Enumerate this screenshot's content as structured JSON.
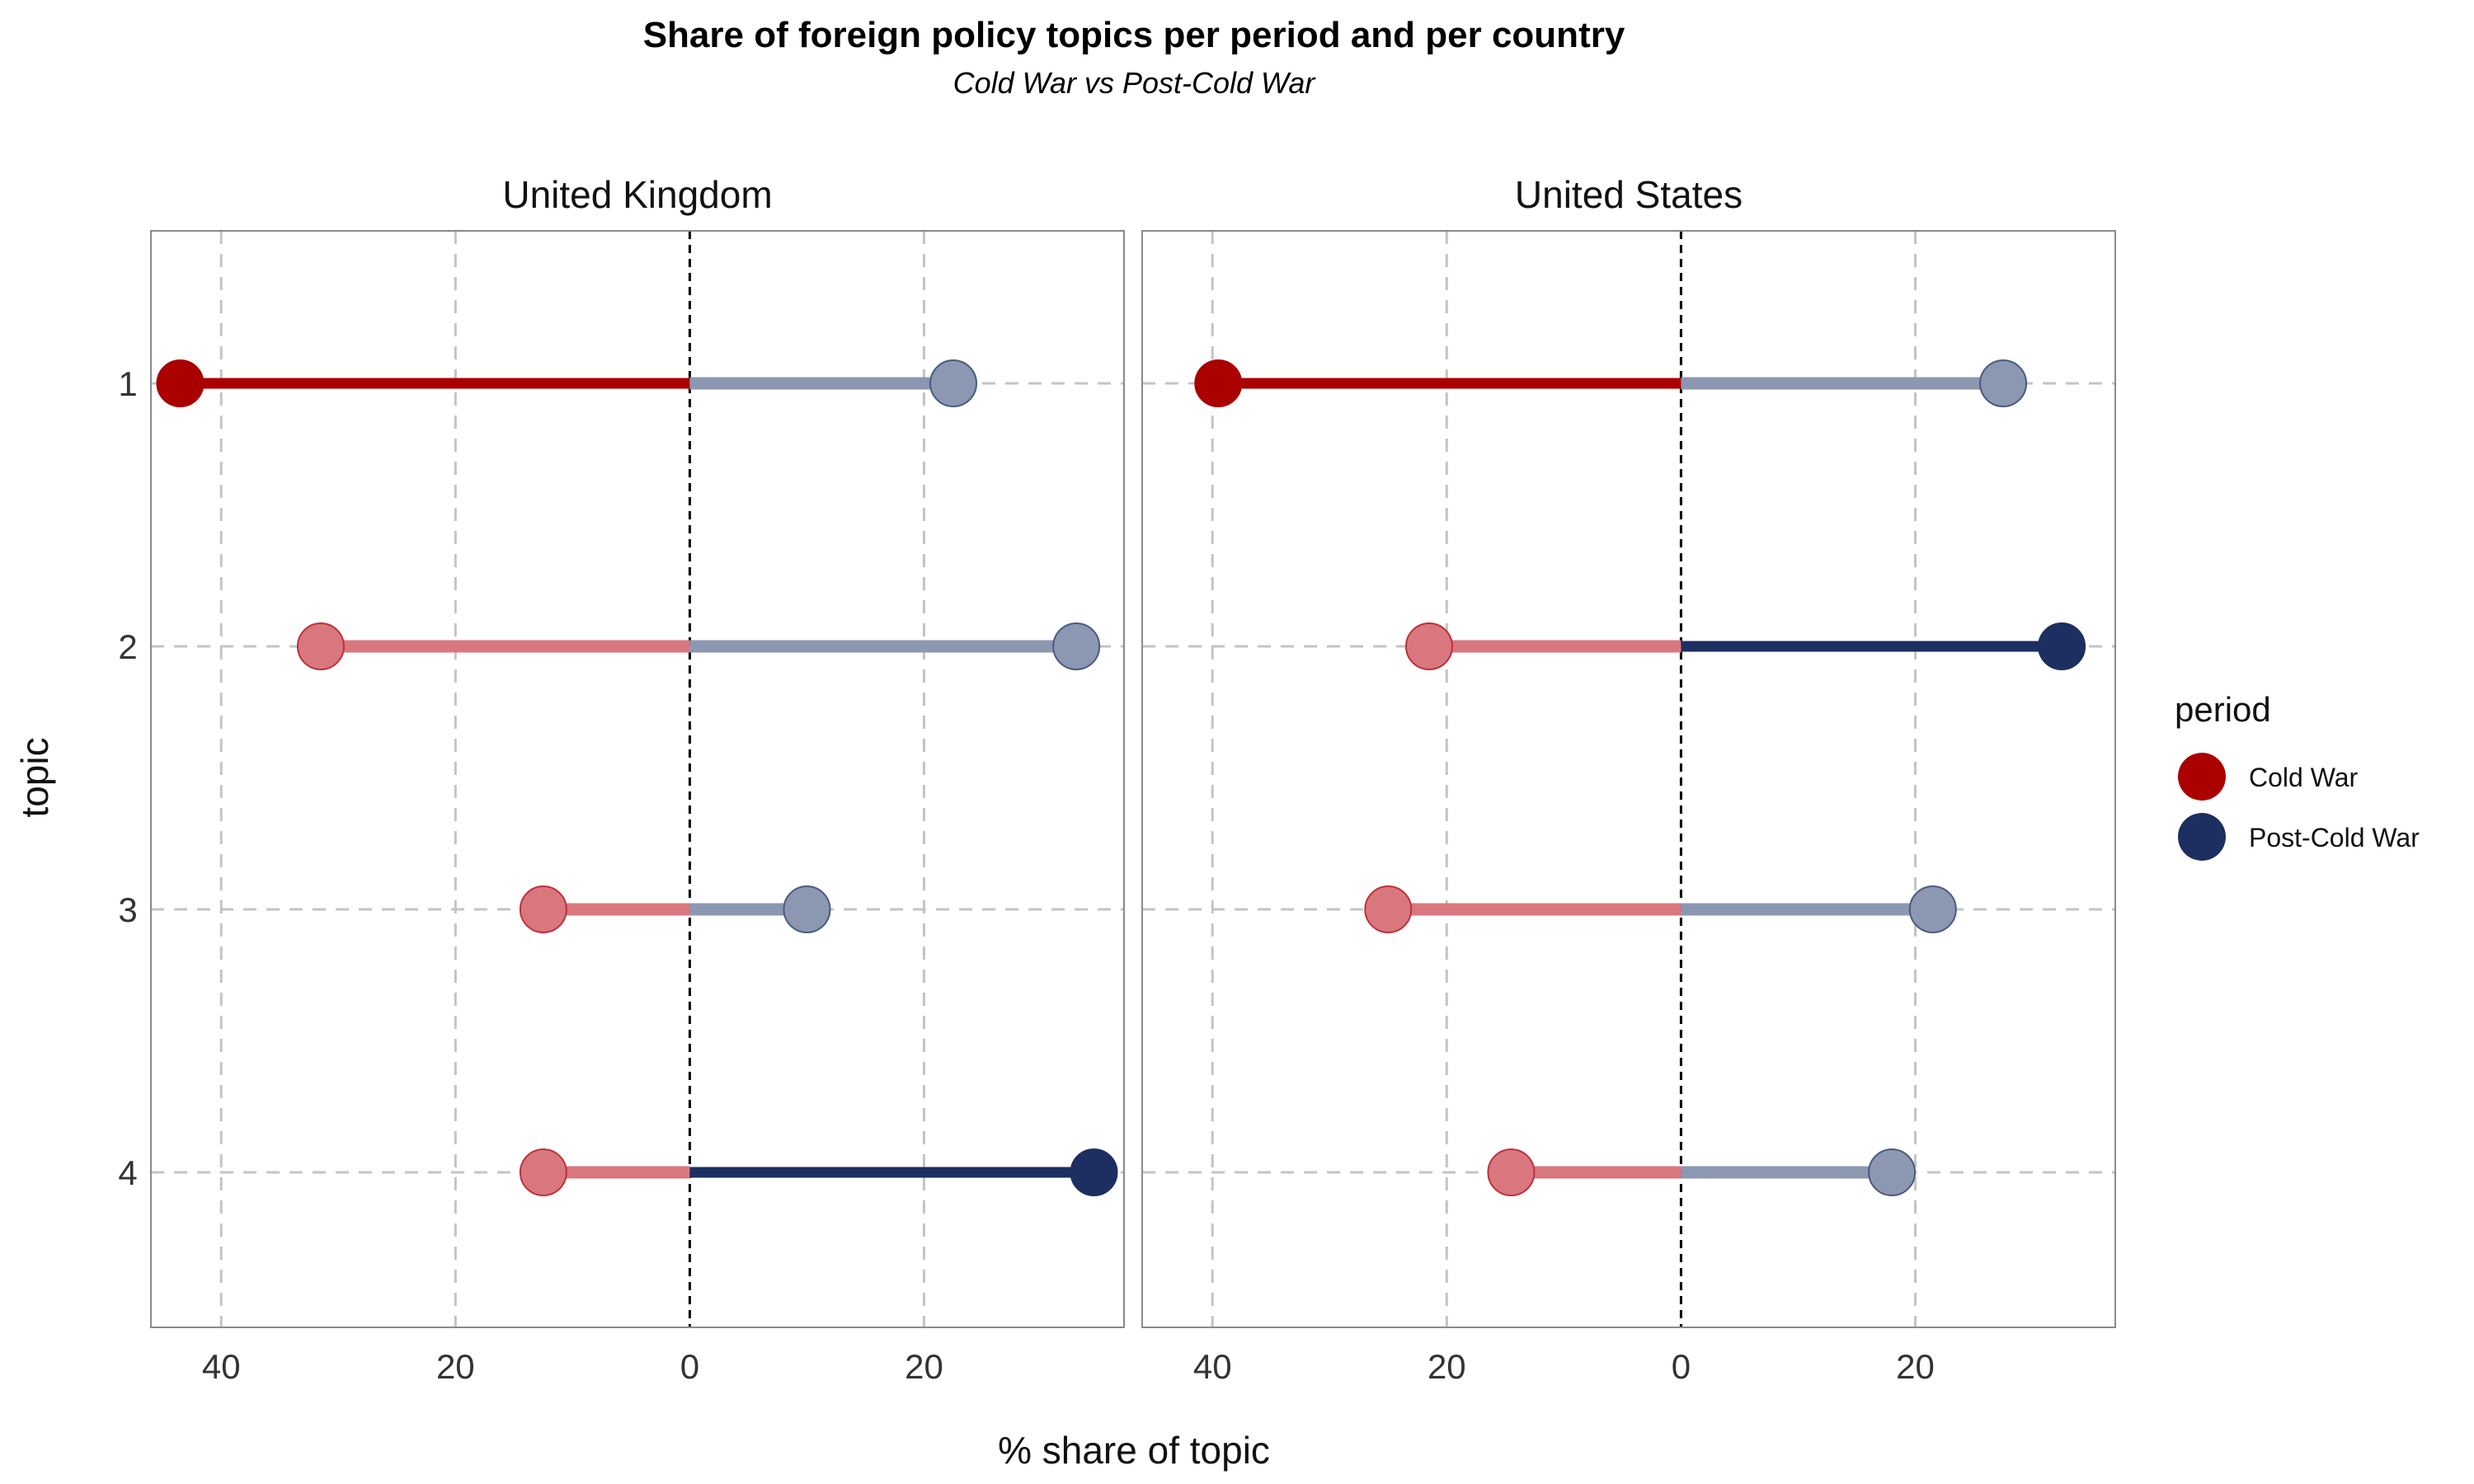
{
  "chart_data": {
    "type": "dumbbell",
    "title": "Share of foreign policy topics per period and per country",
    "subtitle": "Cold War vs Post-Cold War",
    "xlabel": "% share of topic",
    "ylabel": "topic",
    "xlim": [
      -46,
      37
    ],
    "x_tick_values": [
      -40,
      -20,
      0,
      20
    ],
    "x_tick_labels": [
      "40",
      "20",
      "0",
      "20"
    ],
    "y_categories": [
      "1",
      "2",
      "3",
      "4"
    ],
    "grid": true,
    "legend": {
      "title": "period",
      "position": "right",
      "entries": [
        {
          "label": "Cold War",
          "color": "#AA0000"
        },
        {
          "label": "Post-Cold War",
          "color": "#1C2F60"
        }
      ]
    },
    "colors": {
      "cold_war": "#AA0000",
      "post_cold_war": "#1C2F60",
      "cold_war_faded": "#D9777F",
      "post_cold_war_faded": "#8C97B2",
      "grid": "#C4C4C4",
      "panel_border": "#8A8A8A"
    },
    "panels": [
      {
        "name": "United Kingdom",
        "rows": [
          {
            "topic": "1",
            "cold_war": 43.5,
            "post_cold_war": 22.5,
            "highlight": "cold_war"
          },
          {
            "topic": "2",
            "cold_war": 31.5,
            "post_cold_war": 33.0,
            "highlight": "none"
          },
          {
            "topic": "3",
            "cold_war": 12.5,
            "post_cold_war": 10.0,
            "highlight": "none"
          },
          {
            "topic": "4",
            "cold_war": 12.5,
            "post_cold_war": 34.5,
            "highlight": "post_cold_war"
          }
        ]
      },
      {
        "name": "United States",
        "rows": [
          {
            "topic": "1",
            "cold_war": 39.5,
            "post_cold_war": 27.5,
            "highlight": "cold_war"
          },
          {
            "topic": "2",
            "cold_war": 21.5,
            "post_cold_war": 32.5,
            "highlight": "post_cold_war"
          },
          {
            "topic": "3",
            "cold_war": 25.0,
            "post_cold_war": 21.5,
            "highlight": "none"
          },
          {
            "topic": "4",
            "cold_war": 14.5,
            "post_cold_war": 18.0,
            "highlight": "none"
          }
        ]
      }
    ]
  }
}
